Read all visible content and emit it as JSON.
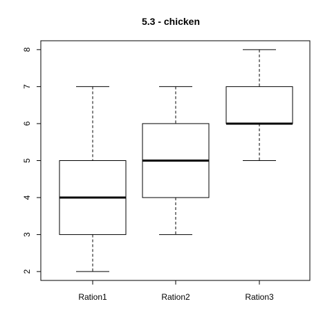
{
  "chart_data": {
    "type": "boxplot",
    "title": "5.3 - chicken",
    "xlabel": "",
    "ylabel": "",
    "categories": [
      "Ration1",
      "Ration2",
      "Ration3"
    ],
    "boxes": [
      {
        "label": "Ration1",
        "min": 2,
        "q1": 3,
        "median": 4,
        "q3": 5,
        "max": 7
      },
      {
        "label": "Ration2",
        "min": 3,
        "q1": 4,
        "median": 5,
        "q3": 6,
        "max": 7
      },
      {
        "label": "Ration3",
        "min": 5,
        "q1": 6,
        "median": 6,
        "q3": 7,
        "max": 8
      }
    ],
    "yticks": [
      2,
      3,
      4,
      5,
      6,
      7,
      8
    ],
    "ylim": [
      1.76,
      8.24
    ],
    "grid": false,
    "legend": "none",
    "colors": {
      "stroke": "#000000",
      "fill": "#ffffff"
    }
  }
}
